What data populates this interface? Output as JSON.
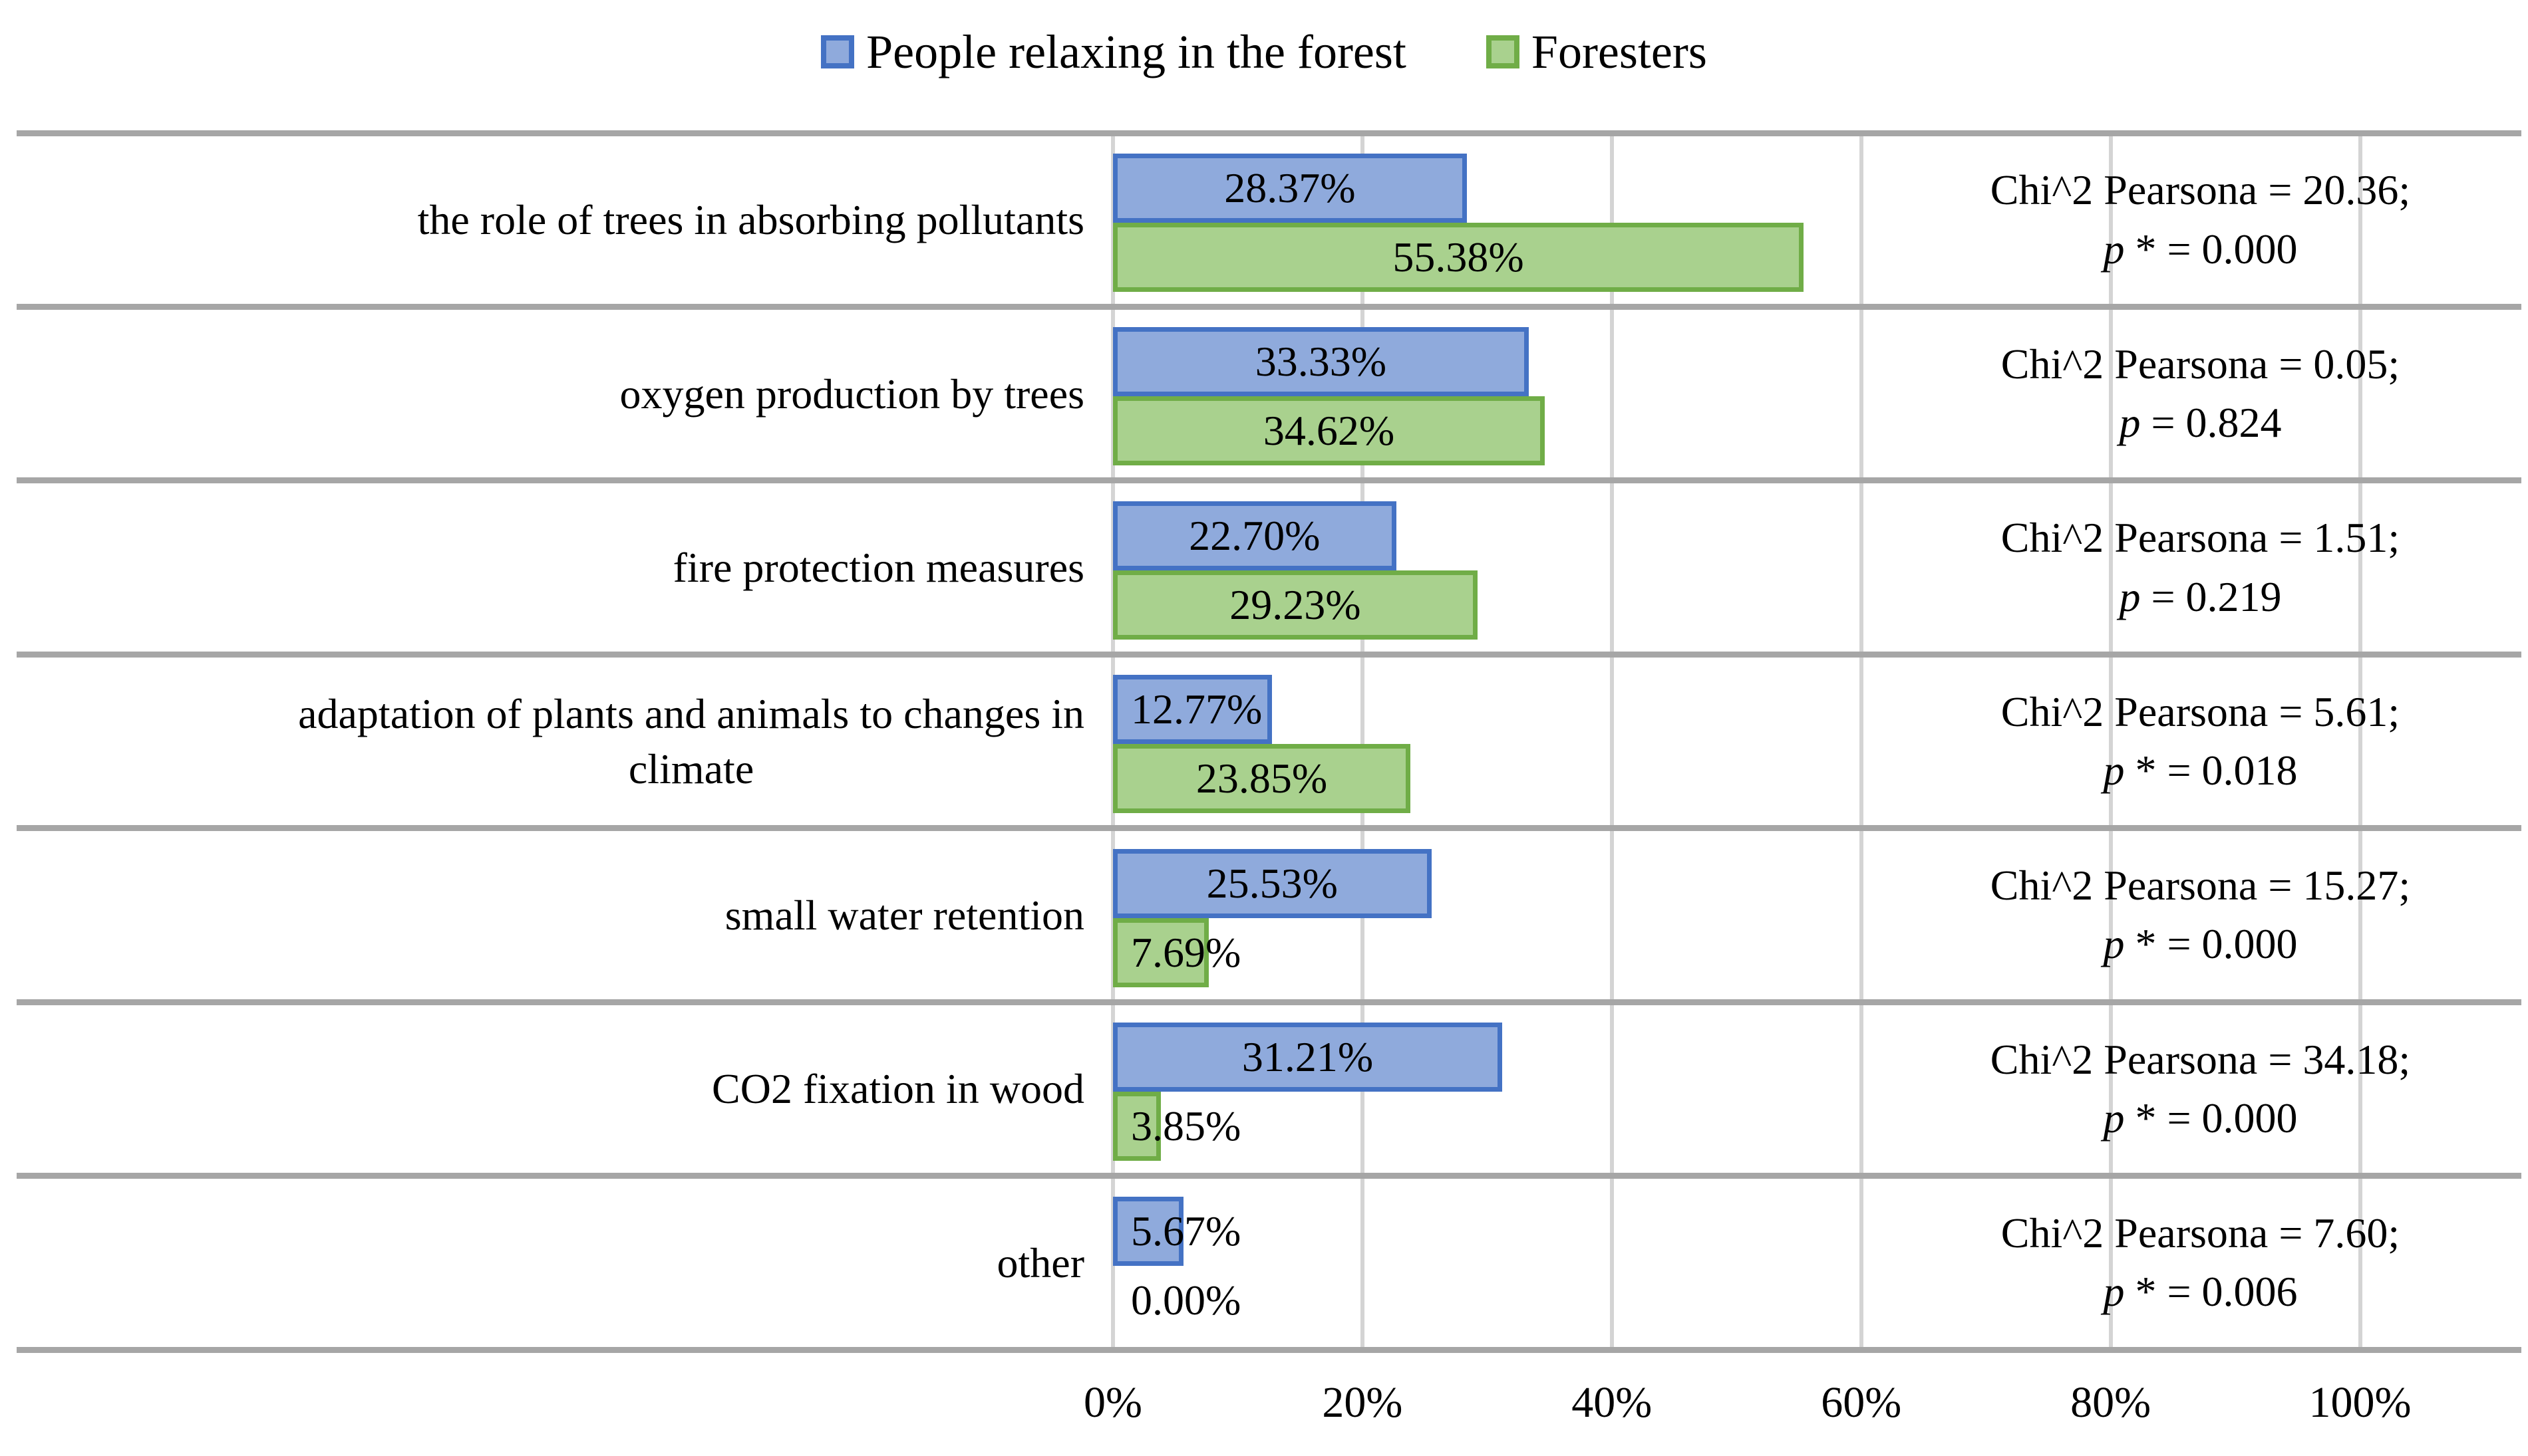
{
  "legend": {
    "items": [
      {
        "label": "People relaxing in the forest",
        "fill": "#8FAADC",
        "border": "#4472C4"
      },
      {
        "label": "Foresters",
        "fill": "#A9D18E",
        "border": "#70AD47"
      }
    ]
  },
  "chart_data": {
    "type": "bar",
    "orientation": "horizontal",
    "title": "",
    "xlabel": "",
    "ylabel": "",
    "xlim": [
      0,
      100
    ],
    "x_ticks": [
      "0%",
      "20%",
      "40%",
      "60%",
      "80%",
      "100%"
    ],
    "grid": true,
    "legend_position": "top",
    "categories": [
      "the role of trees in absorbing pollutants",
      "oxygen production by trees",
      "fire protection measures",
      "adaptation of plants and animals to changes in\nclimate",
      "small water retention",
      "CO2 fixation in wood",
      "other"
    ],
    "series": [
      {
        "name": "People relaxing in the forest",
        "fill": "#8FAADC",
        "border": "#4472C4",
        "values": [
          28.37,
          33.33,
          22.7,
          12.77,
          25.53,
          31.21,
          5.67
        ]
      },
      {
        "name": "Foresters",
        "fill": "#A9D18E",
        "border": "#70AD47",
        "values": [
          55.38,
          34.62,
          29.23,
          23.85,
          7.69,
          3.85,
          0.0
        ]
      }
    ],
    "value_labels": [
      [
        "28.37%",
        "55.38%"
      ],
      [
        "33.33%",
        "34.62%"
      ],
      [
        "22.70%",
        "29.23%"
      ],
      [
        "12.77%",
        "23.85%"
      ],
      [
        "25.53%",
        "7.69%"
      ],
      [
        "31.21%",
        "3.85%"
      ],
      [
        "5.67%",
        "0.00%"
      ]
    ],
    "annotations": [
      {
        "line1": "Chi^2 Pearsona = 20.36;",
        "p_symbol": "p",
        "p_rest": " * = 0.000"
      },
      {
        "line1": "Chi^2 Pearsona = 0.05;",
        "p_symbol": "p",
        "p_rest": " = 0.824"
      },
      {
        "line1": "Chi^2 Pearsona = 1.51;",
        "p_symbol": "p",
        "p_rest": " = 0.219"
      },
      {
        "line1": "Chi^2 Pearsona = 5.61;",
        "p_symbol": "p",
        "p_rest": " * = 0.018"
      },
      {
        "line1": "Chi^2 Pearsona = 15.27;",
        "p_symbol": "p",
        "p_rest": " * = 0.000"
      },
      {
        "line1": "Chi^2 Pearsona = 34.18;",
        "p_symbol": "p",
        "p_rest": " * = 0.000"
      },
      {
        "line1": "Chi^2 Pearsona = 7.60;",
        "p_symbol": "p",
        "p_rest": " * = 0.006"
      }
    ]
  },
  "colors": {
    "background": "#FFFFFF",
    "text": "#000000",
    "gridline": "#D4D4D4",
    "separator": "#A6A6A6"
  }
}
